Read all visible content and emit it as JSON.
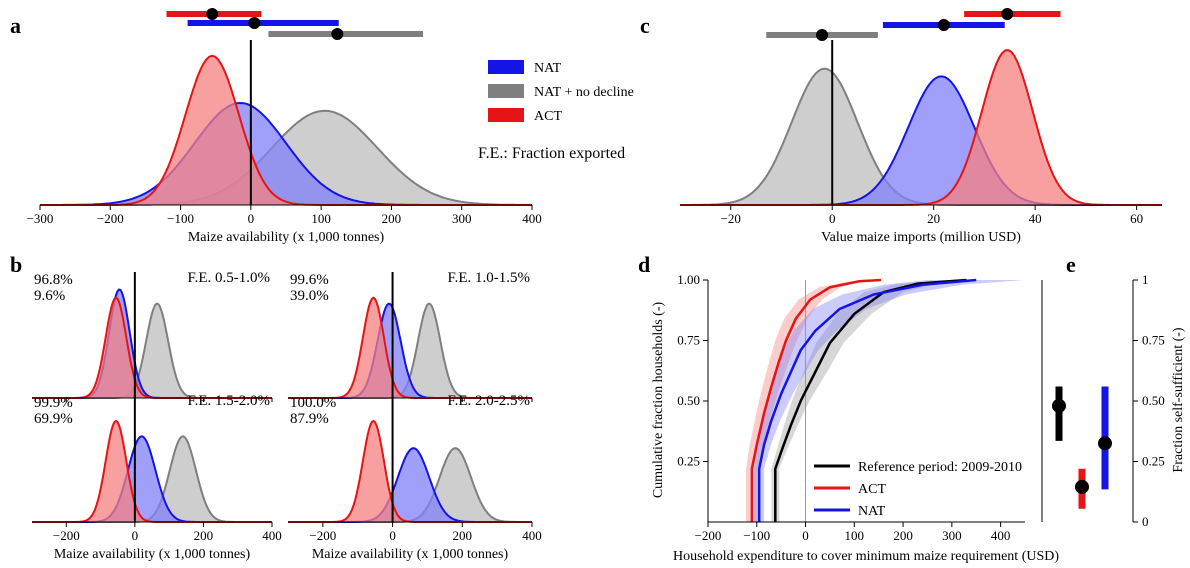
{
  "colors": {
    "NAT": "#1414e6",
    "NAT_fill": "#8080f8",
    "NOD": "#7f7f7f",
    "NOD_fill": "#bdbdbd",
    "ACT": "#e61414",
    "ACT_fill": "#f58080",
    "REF": "#000000"
  },
  "panel_labels": [
    "a",
    "b",
    "c",
    "d",
    "e"
  ],
  "legend_top": {
    "items": [
      {
        "name": "NAT",
        "color": "#1414e6"
      },
      {
        "name": "NAT + no decline",
        "color": "#7f7f7f"
      },
      {
        "name": "ACT",
        "color": "#e61414"
      }
    ],
    "note": "F.E.: Fraction exported"
  },
  "chart_data": [
    {
      "id": "a",
      "type": "area",
      "xlabel": "Maize availability (x 1,000 tonnes)",
      "xlim": [
        -300,
        400
      ],
      "xticks": [
        "−300",
        "−200",
        "−100",
        "0",
        "100",
        "200",
        "300",
        "400"
      ],
      "xtick_values": [
        -300,
        -200,
        -100,
        0,
        100,
        200,
        300,
        400
      ],
      "series": [
        {
          "name": "NAT + no decline",
          "mean": 105,
          "sd": 75,
          "peak": 0.6
        },
        {
          "name": "NAT",
          "mean": -15,
          "sd": 65,
          "peak": 0.65
        },
        {
          "name": "ACT",
          "mean": -55,
          "sd": 38,
          "peak": 0.95
        }
      ],
      "intervals": [
        {
          "name": "ACT",
          "lo": -120,
          "hi": 15,
          "point": -55
        },
        {
          "name": "NAT",
          "lo": -90,
          "hi": 125,
          "point": 5
        },
        {
          "name": "NAT + no decline",
          "lo": 25,
          "hi": 245,
          "point": 123
        }
      ]
    },
    {
      "id": "c",
      "type": "area",
      "xlabel": "Value maize imports (million USD)",
      "xlim": [
        -30,
        65
      ],
      "xticks": [
        "−20",
        "0",
        "20",
        "40",
        "60"
      ],
      "xtick_values": [
        -20,
        0,
        20,
        40,
        60
      ],
      "series": [
        {
          "name": "NAT + no decline",
          "mean": -1.5,
          "sd": 6.5,
          "peak": 0.88
        },
        {
          "name": "NAT",
          "mean": 21.5,
          "sd": 6.5,
          "peak": 0.83
        },
        {
          "name": "ACT",
          "mean": 34.5,
          "sd": 5.0,
          "peak": 1.0
        }
      ],
      "intervals": [
        {
          "name": "ACT",
          "lo": 26,
          "hi": 45,
          "point": 34.5
        },
        {
          "name": "NAT",
          "lo": 10,
          "hi": 34,
          "point": 22
        },
        {
          "name": "NAT + no decline",
          "lo": -13,
          "hi": 9,
          "point": -2
        }
      ]
    },
    {
      "id": "b",
      "type": "area",
      "xlabel": "Maize availability (x 1,000 tonnes)",
      "xlim": [
        -300,
        400
      ],
      "xticks": [
        "−200",
        "0",
        "200",
        "400"
      ],
      "xtick_values": [
        -200,
        0,
        200,
        400
      ],
      "subplots": [
        {
          "title": "F.E. 0.5-1.0%",
          "pct_nod": "96.8%",
          "pct_nat": "9.6%",
          "series": [
            {
              "name": "NAT + no decline",
              "mean": 65,
              "sd": 32,
              "peak": 0.8
            },
            {
              "name": "NAT",
              "mean": -45,
              "sd": 30,
              "peak": 0.92
            },
            {
              "name": "ACT",
              "mean": -55,
              "sd": 30,
              "peak": 0.85
            }
          ]
        },
        {
          "title": "F.E. 1.0-1.5%",
          "pct_nod": "99.6%",
          "pct_nat": "39.0%",
          "series": [
            {
              "name": "NAT + no decline",
              "mean": 105,
              "sd": 32,
              "peak": 0.8
            },
            {
              "name": "NAT",
              "mean": -10,
              "sd": 33,
              "peak": 0.8
            },
            {
              "name": "ACT",
              "mean": -55,
              "sd": 30,
              "peak": 0.85
            }
          ]
        },
        {
          "title": "F.E. 1.5-2.0%",
          "pct_nod": "99.9%",
          "pct_nat": "69.9%",
          "series": [
            {
              "name": "NAT + no decline",
              "mean": 140,
              "sd": 38,
              "peak": 0.72
            },
            {
              "name": "NAT",
              "mean": 20,
              "sd": 40,
              "peak": 0.72
            },
            {
              "name": "ACT",
              "mean": -55,
              "sd": 30,
              "peak": 0.85
            }
          ]
        },
        {
          "title": "F.E. 2.0-2.5%",
          "pct_nod": "100.0%",
          "pct_nat": "87.9%",
          "series": [
            {
              "name": "NAT + no decline",
              "mean": 180,
              "sd": 45,
              "peak": 0.62
            },
            {
              "name": "NAT",
              "mean": 60,
              "sd": 45,
              "peak": 0.62
            },
            {
              "name": "ACT",
              "mean": -55,
              "sd": 30,
              "peak": 0.85
            }
          ]
        }
      ]
    },
    {
      "id": "d",
      "type": "line",
      "xlabel": "Household expenditure to cover minimum maize requirement (USD)",
      "ylabel": "Cumulative fraction households (-)",
      "xlim": [
        -200,
        450
      ],
      "ylim": [
        0,
        1
      ],
      "xticks": [
        "−200",
        "−100",
        "0",
        "100",
        "200",
        "300",
        "400"
      ],
      "xtick_values": [
        -200,
        -100,
        0,
        100,
        200,
        300,
        400
      ],
      "yticks": [
        "0.25",
        "0.50",
        "0.75",
        "1.00"
      ],
      "ytick_values": [
        0.25,
        0.5,
        0.75,
        1.0
      ],
      "legend": [
        "Reference period: 2009-2010",
        "ACT",
        "NAT"
      ],
      "series": [
        {
          "name": "Reference period: 2009-2010",
          "x": [
            -62,
            -62,
            -50,
            -30,
            -10,
            0,
            20,
            50,
            100,
            160,
            230,
            330
          ],
          "y": [
            0.0,
            0.22,
            0.29,
            0.4,
            0.5,
            0.54,
            0.62,
            0.74,
            0.86,
            0.95,
            0.985,
            1.0
          ],
          "band": [
            8,
            8,
            10,
            14,
            18,
            20,
            24,
            28,
            35,
            40,
            40,
            30
          ]
        },
        {
          "name": "ACT",
          "x": [
            -110,
            -110,
            -100,
            -85,
            -70,
            -55,
            -40,
            -20,
            10,
            50,
            110,
            155
          ],
          "y": [
            0.0,
            0.22,
            0.32,
            0.45,
            0.56,
            0.66,
            0.75,
            0.84,
            0.92,
            0.97,
            0.995,
            1.0
          ],
          "band": [
            12,
            12,
            14,
            16,
            18,
            20,
            22,
            24,
            24,
            22,
            15,
            10
          ]
        },
        {
          "name": "NAT",
          "x": [
            -95,
            -95,
            -85,
            -70,
            -50,
            -30,
            -10,
            20,
            70,
            140,
            240,
            350
          ],
          "y": [
            0.0,
            0.22,
            0.32,
            0.42,
            0.53,
            0.62,
            0.71,
            0.79,
            0.88,
            0.94,
            0.98,
            1.0
          ],
          "band": [
            10,
            10,
            14,
            18,
            24,
            30,
            36,
            44,
            55,
            65,
            80,
            100
          ]
        }
      ],
      "vline": 0
    },
    {
      "id": "e",
      "type": "scatter",
      "ylabel": "Fraction self-sufficient (-)",
      "ylim": [
        0,
        1
      ],
      "yticks": [
        "0",
        "0.25",
        "0.50",
        "0.75",
        "1"
      ],
      "ytick_values": [
        0,
        0.25,
        0.5,
        0.75,
        1
      ],
      "points": [
        {
          "name": "Reference period: 2009-2010",
          "value": 0.48,
          "lo": 0.335,
          "hi": 0.56
        },
        {
          "name": "ACT",
          "value": 0.145,
          "lo": 0.055,
          "hi": 0.22
        },
        {
          "name": "NAT",
          "value": 0.325,
          "lo": 0.135,
          "hi": 0.56
        }
      ]
    }
  ]
}
